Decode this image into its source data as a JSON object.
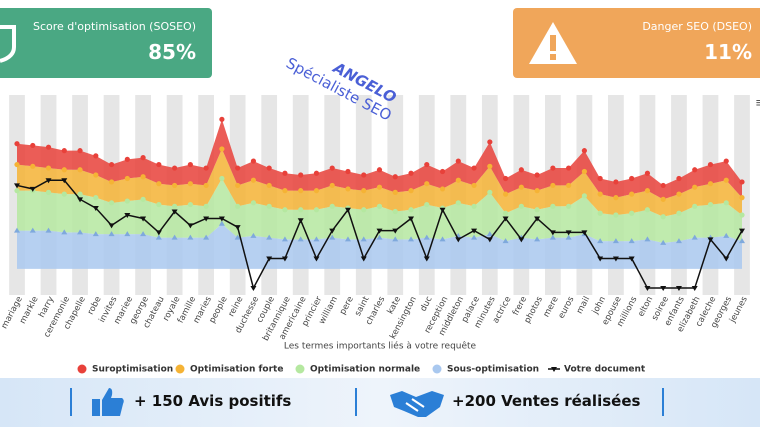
{
  "cards": [
    {
      "label": "Score d'optimisation (SOSEO)",
      "value": "85%"
    },
    {
      "label": "Danger SEO (DSEO)",
      "value": "11%"
    }
  ],
  "watermark": {
    "name": "ANGELO",
    "role": "Spécialiste SEO"
  },
  "banner": {
    "items": [
      "+ 150 Avis positifs",
      "+200 Ventes réalisées"
    ]
  },
  "chart_data": {
    "type": "area",
    "x_label": "Les termes importants liés à votre requête",
    "categories": [
      "mariage",
      "markle",
      "harry",
      "ceremonie",
      "chapelle",
      "robe",
      "invites",
      "mariee",
      "george",
      "chateau",
      "royale",
      "famille",
      "maries",
      "people",
      "reine",
      "duchesse",
      "couple",
      "britannique",
      "americaine",
      "princier",
      "william",
      "pere",
      "saint",
      "charles",
      "kate",
      "kensington",
      "duc",
      "reception",
      "middleton",
      "palace",
      "minutes",
      "actrice",
      "frere",
      "photos",
      "mere",
      "euros",
      "mail",
      "john",
      "epouse",
      "millions",
      "elton",
      "soiree",
      "enfants",
      "elizabeth",
      "caleche",
      "georges",
      "jeunes"
    ],
    "ylim": [
      -15,
      100
    ],
    "series": [
      {
        "name": "Suroptimisation",
        "color": "#e8413a",
        "type": "area",
        "values": [
          12,
          12,
          12,
          11,
          11,
          11,
          10,
          11,
          11,
          11,
          10,
          11,
          10,
          17,
          10,
          11,
          10,
          10,
          9,
          10,
          10,
          10,
          9,
          10,
          9,
          10,
          11,
          10,
          11,
          10,
          14,
          9,
          10,
          9,
          10,
          10,
          12,
          9,
          9,
          9,
          10,
          8,
          9,
          10,
          11,
          11,
          9
        ]
      },
      {
        "name": "Optimisation forte",
        "color": "#f5b335",
        "type": "area",
        "values": [
          15,
          14,
          14,
          14,
          14,
          13,
          12,
          13,
          13,
          12,
          12,
          12,
          12,
          17,
          12,
          13,
          12,
          11,
          11,
          11,
          12,
          11,
          11,
          11,
          11,
          11,
          12,
          11,
          13,
          12,
          15,
          11,
          11,
          11,
          12,
          12,
          14,
          11,
          10,
          11,
          11,
          10,
          11,
          11,
          12,
          13,
          10
        ]
      },
      {
        "name": "Optimisation normale",
        "color": "#b5e8a0",
        "type": "area",
        "values": [
          23,
          23,
          22,
          22,
          22,
          21,
          18,
          19,
          20,
          19,
          18,
          19,
          18,
          26,
          18,
          19,
          18,
          17,
          17,
          17,
          18,
          18,
          17,
          18,
          16,
          17,
          19,
          18,
          19,
          18,
          24,
          16,
          18,
          17,
          18,
          18,
          22,
          16,
          15,
          16,
          17,
          15,
          16,
          18,
          19,
          19,
          15
        ]
      },
      {
        "name": "Sous-optimisation",
        "color": "#a9c8ef",
        "type": "area",
        "values": [
          22,
          22,
          22,
          21,
          21,
          20,
          20,
          20,
          20,
          18,
          18,
          18,
          18,
          26,
          18,
          19,
          18,
          17,
          17,
          17,
          18,
          17,
          17,
          18,
          17,
          17,
          18,
          17,
          19,
          18,
          20,
          16,
          18,
          17,
          18,
          18,
          20,
          16,
          16,
          16,
          17,
          15,
          16,
          18,
          18,
          19,
          16
        ]
      },
      {
        "name": "Votre document",
        "color": "#111111",
        "type": "line",
        "values": [
          48,
          46,
          51,
          51,
          40,
          35,
          25,
          31,
          29,
          21,
          33,
          25,
          29,
          29,
          24,
          -11,
          6,
          6,
          28,
          6,
          22,
          34,
          6,
          22,
          22,
          29,
          6,
          34,
          17,
          22,
          17,
          29,
          17,
          29,
          21,
          21,
          21,
          6,
          6,
          6,
          -11,
          -11,
          -11,
          -11,
          17,
          6,
          22
        ]
      }
    ]
  }
}
